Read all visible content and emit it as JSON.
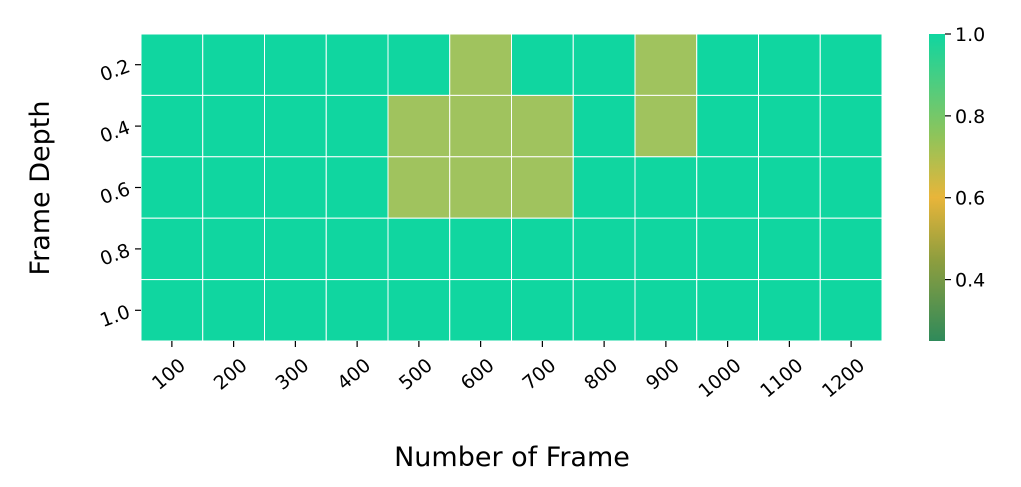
{
  "chart_data": {
    "type": "heatmap",
    "xlabel": "Number of Frame",
    "ylabel": "Frame Depth",
    "x_categories": [
      "100",
      "200",
      "300",
      "400",
      "500",
      "600",
      "700",
      "800",
      "900",
      "1000",
      "1100",
      "1200"
    ],
    "y_categories": [
      "0.2",
      "0.4",
      "0.6",
      "0.8",
      "1.0"
    ],
    "values": [
      [
        1.0,
        1.0,
        1.0,
        1.0,
        1.0,
        0.7,
        1.0,
        1.0,
        0.7,
        1.0,
        1.0,
        1.0
      ],
      [
        1.0,
        1.0,
        1.0,
        1.0,
        0.7,
        0.7,
        0.7,
        1.0,
        0.7,
        1.0,
        1.0,
        1.0
      ],
      [
        1.0,
        1.0,
        1.0,
        1.0,
        0.7,
        0.7,
        0.7,
        1.0,
        1.0,
        1.0,
        1.0,
        1.0
      ],
      [
        1.0,
        1.0,
        1.0,
        1.0,
        1.0,
        1.0,
        1.0,
        1.0,
        1.0,
        1.0,
        1.0,
        1.0
      ],
      [
        1.0,
        1.0,
        1.0,
        1.0,
        1.0,
        1.0,
        1.0,
        1.0,
        1.0,
        1.0,
        1.0,
        1.0
      ]
    ],
    "colorbar": {
      "vmin": 0.25,
      "vmax": 1.0,
      "ticks": [
        "0.4",
        "0.6",
        "0.8",
        "1.0"
      ],
      "stops": [
        {
          "value": 0.25,
          "color": "#2f8a5a"
        },
        {
          "value": 0.45,
          "color": "#8f9e3e"
        },
        {
          "value": 0.6,
          "color": "#e8b53a"
        },
        {
          "value": 0.75,
          "color": "#8fc45a"
        },
        {
          "value": 0.85,
          "color": "#5ccb78"
        },
        {
          "value": 1.0,
          "color": "#10d6a0"
        }
      ]
    },
    "colors": {
      "high": "#10d6a0",
      "mid": "#a0c35e",
      "grid_line": "#ffffff"
    },
    "grid": true
  }
}
